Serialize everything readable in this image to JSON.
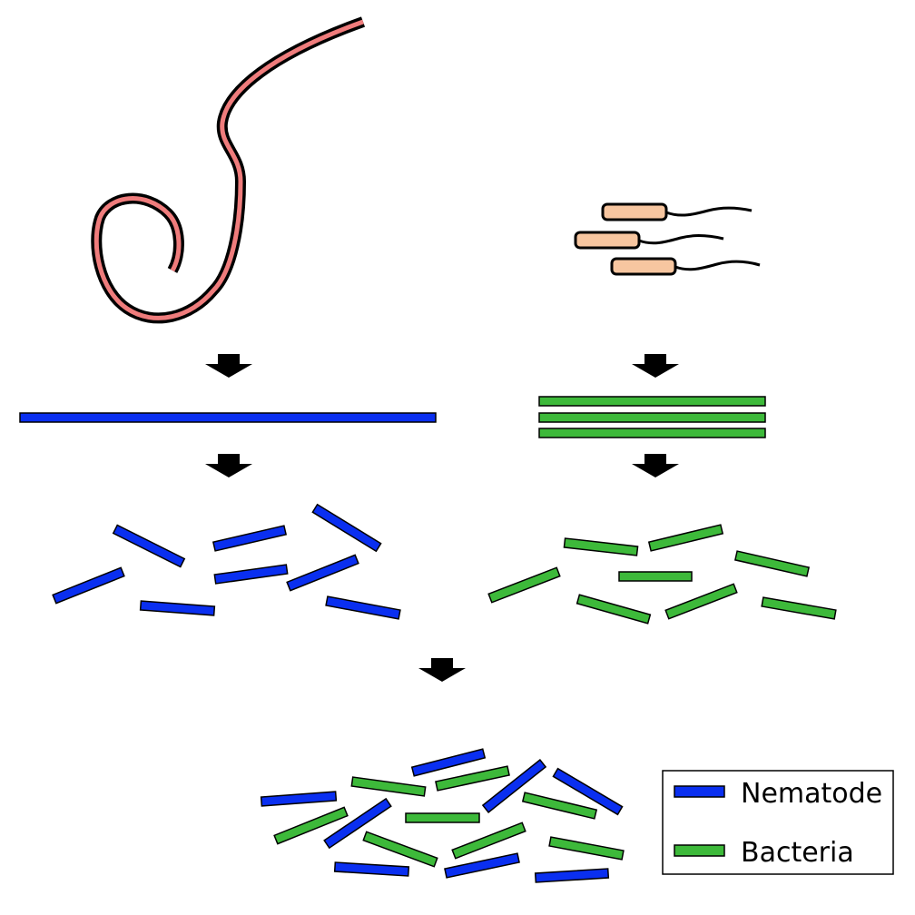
{
  "colors": {
    "nematode": "#0a2ff0",
    "bacteria": "#3db93a",
    "worm_body": "#ef7c7c",
    "bacterium_body": "#f7c6a0",
    "arrow": "#000000",
    "stroke": "#000000"
  },
  "legend": {
    "items": [
      {
        "label": "Nematode",
        "color_key": "nematode"
      },
      {
        "label": "Bacteria",
        "color_key": "bacteria"
      }
    ]
  },
  "icons": {
    "organism_left": "nematode-worm-icon",
    "organism_right": "bacteria-cells-icon",
    "arrow": "down-arrow-icon"
  }
}
